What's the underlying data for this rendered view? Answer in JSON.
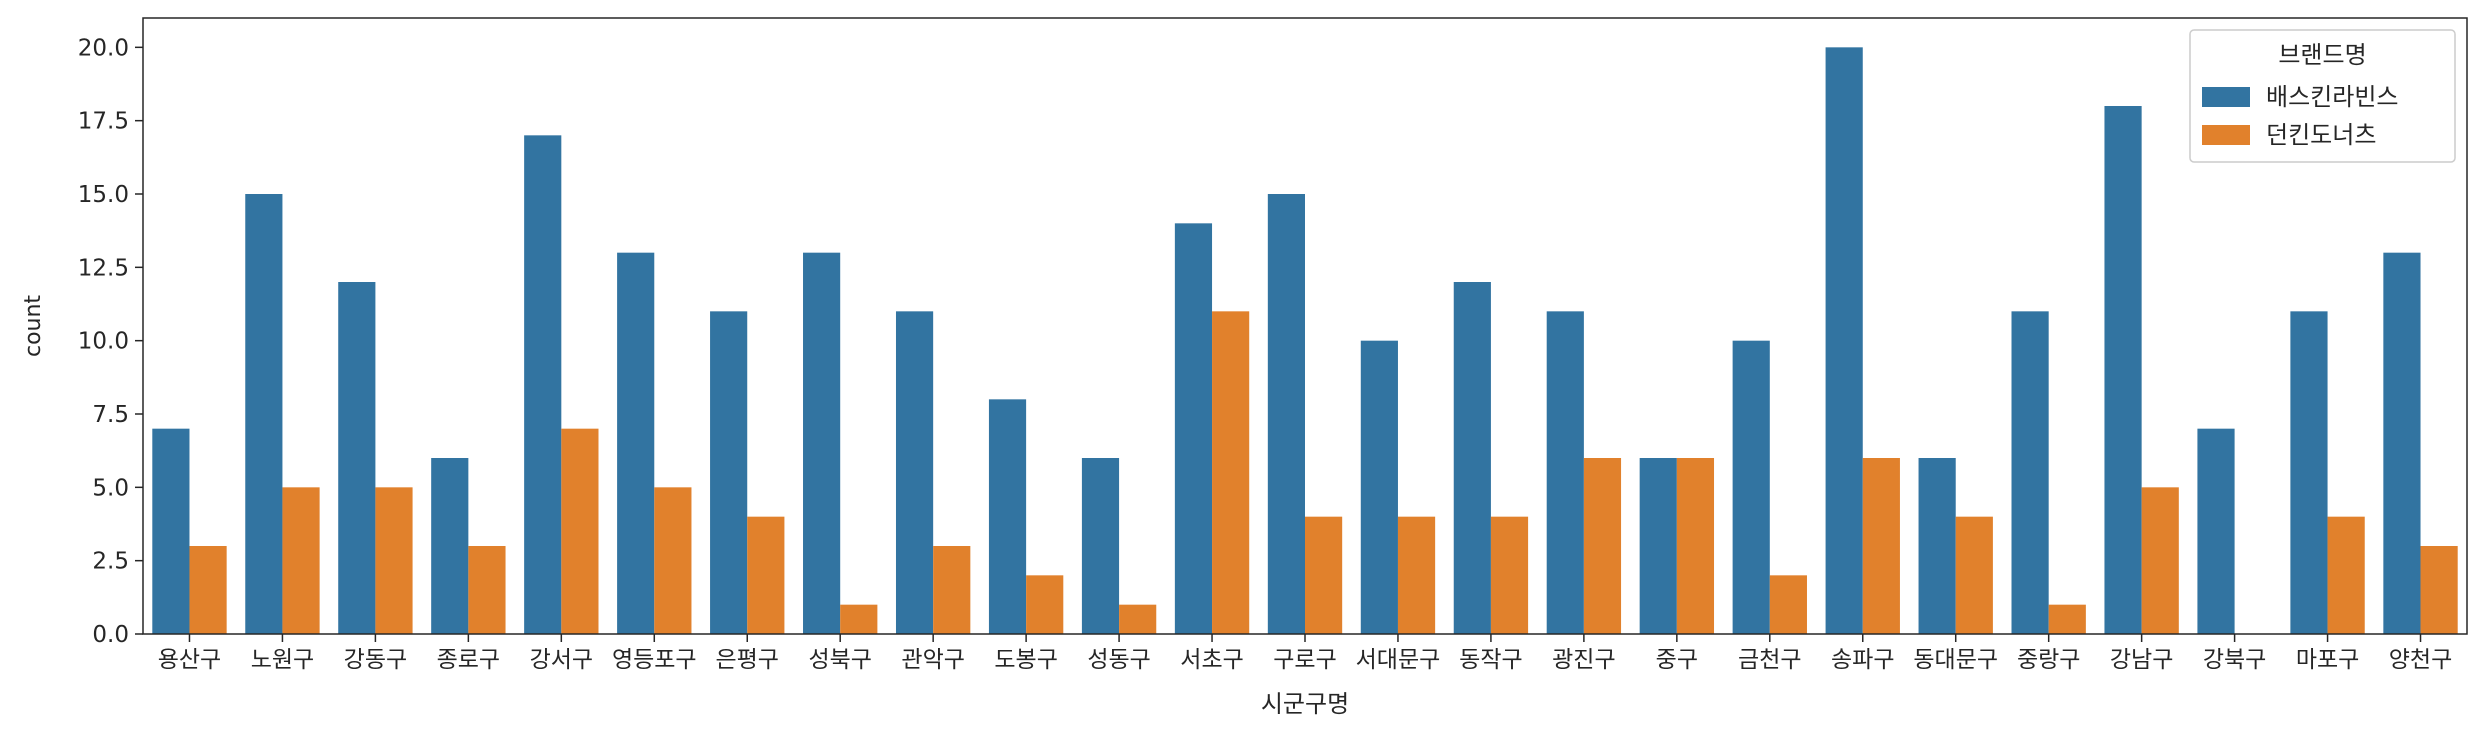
{
  "chart_data": {
    "type": "bar",
    "xlabel": "시군구명",
    "ylabel": "count",
    "ylim": [
      0,
      21
    ],
    "yticks": [
      "0.0",
      "2.5",
      "5.0",
      "7.5",
      "10.0",
      "12.5",
      "15.0",
      "17.5",
      "20.0"
    ],
    "categories": [
      "용산구",
      "노원구",
      "강동구",
      "종로구",
      "강서구",
      "영등포구",
      "은평구",
      "성북구",
      "관악구",
      "도봉구",
      "성동구",
      "서초구",
      "구로구",
      "서대문구",
      "동작구",
      "광진구",
      "중구",
      "금천구",
      "송파구",
      "동대문구",
      "중랑구",
      "강남구",
      "강북구",
      "마포구",
      "양천구"
    ],
    "series": [
      {
        "name": "배스킨라빈스",
        "color": "#3274a1",
        "values": [
          7,
          15,
          12,
          6,
          17,
          13,
          11,
          13,
          11,
          8,
          6,
          14,
          15,
          10,
          12,
          11,
          6,
          10,
          20,
          6,
          11,
          18,
          7,
          11,
          13
        ]
      },
      {
        "name": "던킨도너츠",
        "color": "#e1812c",
        "values": [
          3,
          5,
          5,
          3,
          7,
          5,
          4,
          1,
          3,
          2,
          1,
          11,
          4,
          4,
          4,
          6,
          6,
          2,
          6,
          4,
          1,
          5,
          0,
          4,
          3
        ]
      }
    ],
    "legend": {
      "title": "브랜드명",
      "placement": "top-right"
    },
    "grid": false
  }
}
